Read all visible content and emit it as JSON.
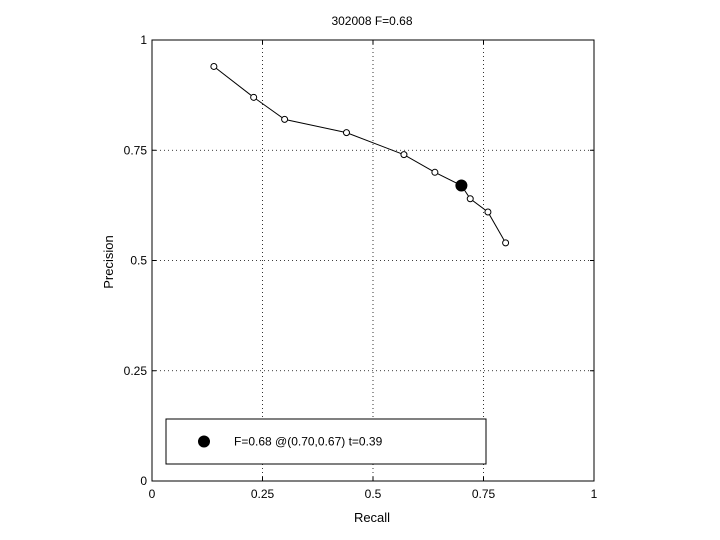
{
  "chart_data": {
    "type": "line",
    "title": "302008 F=0.68",
    "xlabel": "Recall",
    "ylabel": "Precision",
    "xlim": [
      0,
      1
    ],
    "ylim": [
      0,
      1
    ],
    "grid": true,
    "x_ticks": [
      0,
      0.25,
      0.5,
      0.75,
      1
    ],
    "x_tick_labels": [
      "0",
      "0.25",
      "0.5",
      "0.75",
      "1"
    ],
    "y_ticks": [
      0,
      0.25,
      0.5,
      0.75,
      1
    ],
    "y_tick_labels": [
      "0",
      "0.25",
      "0.5",
      "0.75",
      "1"
    ],
    "series": [
      {
        "x": [
          0.14,
          0.23,
          0.3,
          0.44,
          0.57,
          0.64,
          0.7,
          0.72,
          0.76,
          0.8
        ],
        "y": [
          0.94,
          0.87,
          0.82,
          0.79,
          0.74,
          0.7,
          0.67,
          0.64,
          0.61,
          0.54
        ]
      }
    ],
    "best_point": {
      "x": 0.7,
      "y": 0.67
    },
    "legend": {
      "position": "bottom-left",
      "text": "F=0.68 @(0.70,0.67) t=0.39"
    }
  }
}
